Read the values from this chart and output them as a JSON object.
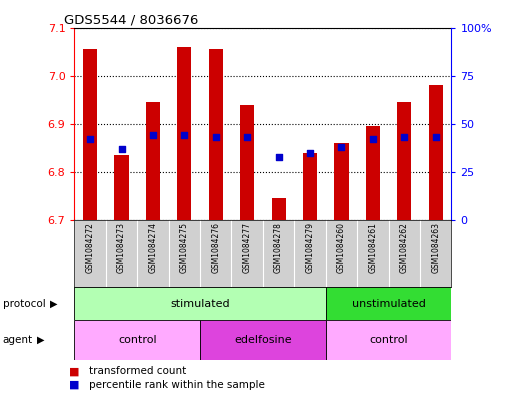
{
  "title": "GDS5544 / 8036676",
  "samples": [
    "GSM1084272",
    "GSM1084273",
    "GSM1084274",
    "GSM1084275",
    "GSM1084276",
    "GSM1084277",
    "GSM1084278",
    "GSM1084279",
    "GSM1084260",
    "GSM1084261",
    "GSM1084262",
    "GSM1084263"
  ],
  "transformed_count": [
    7.055,
    6.835,
    6.945,
    7.06,
    7.055,
    6.94,
    6.745,
    6.84,
    6.86,
    6.895,
    6.945,
    6.98
  ],
  "percentile_rank": [
    42,
    37,
    44,
    44,
    43,
    43,
    33,
    35,
    38,
    42,
    43,
    43
  ],
  "y_min": 6.7,
  "y_max": 7.1,
  "y_ticks": [
    6.7,
    6.8,
    6.9,
    7.0,
    7.1
  ],
  "y2_ticks": [
    0,
    25,
    50,
    75,
    100
  ],
  "y2_labels": [
    "0",
    "25",
    "50",
    "75",
    "100%"
  ],
  "bar_color": "#cc0000",
  "dot_color": "#0000cc",
  "background_color": "#ffffff",
  "protocol_stimulated_label": "stimulated",
  "protocol_unstimulated_label": "unstimulated",
  "agent_control_label": "control",
  "agent_edelfosine_label": "edelfosine",
  "protocol_color_stimulated": "#b3ffb3",
  "protocol_color_unstimulated": "#33dd33",
  "agent_color_control": "#ffaaff",
  "agent_color_edelfosine": "#dd44dd",
  "legend_tc": "transformed count",
  "legend_pr": "percentile rank within the sample",
  "n_samples": 12,
  "n_stimulated": 8,
  "n_unstimulated": 4,
  "n_control1": 4,
  "n_edelfosine": 4,
  "n_control2": 4
}
